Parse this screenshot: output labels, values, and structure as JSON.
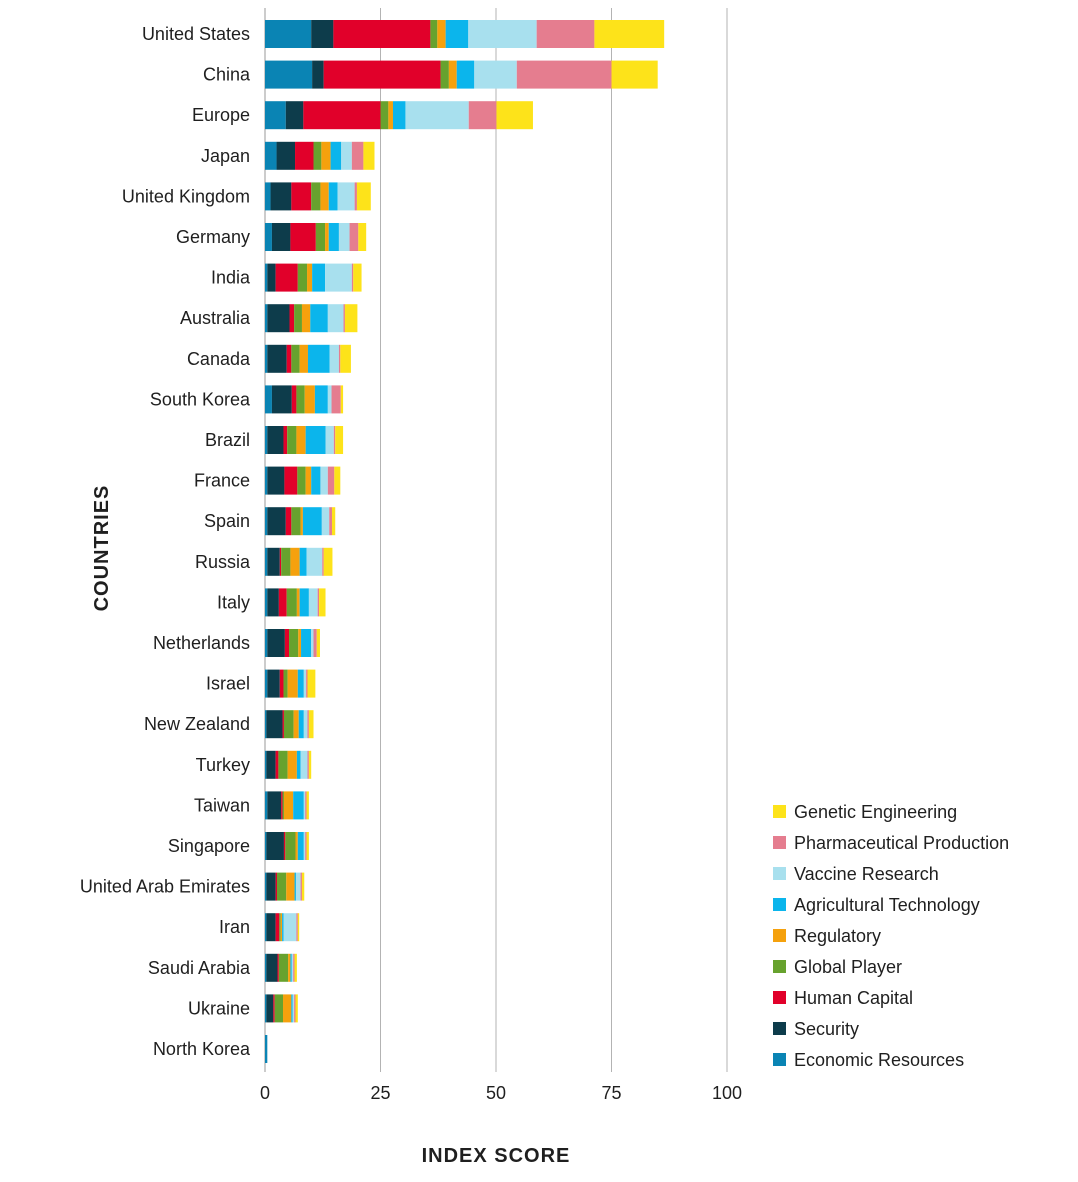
{
  "chart_data": {
    "type": "bar",
    "orientation": "horizontal",
    "stacked": true,
    "xlabel": "INDEX SCORE",
    "ylabel": "COUNTRIES",
    "xlim": [
      0,
      100
    ],
    "xticks": [
      0,
      25,
      50,
      75,
      100
    ],
    "grid": true,
    "legend_position": "bottom-right",
    "categories": [
      "United States",
      "China",
      "Europe",
      "Japan",
      "United Kingdom",
      "Germany",
      "India",
      "Australia",
      "Canada",
      "South Korea",
      "Brazil",
      "France",
      "Spain",
      "Russia",
      "Italy",
      "Netherlands",
      "Israel",
      "New Zealand",
      "Turkey",
      "Taiwan",
      "Singapore",
      "United Arab Emirates",
      "Iran",
      "Saudi Arabia",
      "Ukraine",
      "North Korea"
    ],
    "series": [
      {
        "name": "Economic Resources",
        "color": "#0a84b4",
        "values": [
          10,
          10.2,
          4.5,
          2.5,
          1.2,
          1.5,
          0.5,
          0.5,
          0.5,
          1.5,
          0.5,
          0.5,
          0.5,
          0.5,
          0.5,
          0.5,
          0.5,
          0.3,
          0.3,
          0.5,
          0.3,
          0.3,
          0.3,
          0.3,
          0.3,
          0.5
        ]
      },
      {
        "name": "Security",
        "color": "#0d3c4b",
        "values": [
          4.8,
          2.5,
          3.8,
          4.0,
          4.5,
          4.0,
          1.8,
          4.8,
          4.2,
          4.3,
          3.5,
          3.7,
          4.0,
          2.7,
          2.5,
          3.8,
          2.7,
          3.5,
          2.0,
          3.0,
          3.8,
          2.0,
          2.0,
          2.4,
          1.5,
          0
        ]
      },
      {
        "name": "Human Capital",
        "color": "#e1002a",
        "values": [
          21,
          25.3,
          16.7,
          4.0,
          4.3,
          5.5,
          4.8,
          1.0,
          1.0,
          1.0,
          0.8,
          2.8,
          1.2,
          0.3,
          1.7,
          0.9,
          0.8,
          0.3,
          0.6,
          0.3,
          0.3,
          0.3,
          0.8,
          0.3,
          0.3,
          0
        ]
      },
      {
        "name": "Global Player",
        "color": "#67a22e",
        "values": [
          1.5,
          1.8,
          1.7,
          1.7,
          2.0,
          2.0,
          2.0,
          1.7,
          1.8,
          1.8,
          2.0,
          1.8,
          2.0,
          2.0,
          2.2,
          2.0,
          0.9,
          2.1,
          2.0,
          0.3,
          2.2,
          2.0,
          0.3,
          2.0,
          1.8,
          0
        ]
      },
      {
        "name": "Regulatory",
        "color": "#f5a10d",
        "values": [
          1.8,
          1.7,
          1.0,
          2.0,
          1.8,
          0.8,
          1.1,
          1.8,
          1.8,
          2.2,
          2.0,
          1.2,
          0.5,
          2.0,
          0.6,
          0.6,
          2.2,
          1.1,
          2.0,
          2.0,
          0.5,
          1.8,
          0.3,
          0.5,
          1.8,
          0
        ]
      },
      {
        "name": "Agricultural Technology",
        "color": "#0bb5ec",
        "values": [
          4.9,
          3.8,
          2.7,
          2.3,
          1.9,
          2.2,
          2.8,
          3.8,
          4.7,
          2.8,
          4.3,
          2.0,
          4.1,
          1.5,
          2.0,
          2.2,
          1.3,
          1.1,
          0.8,
          2.3,
          1.3,
          0.3,
          0.3,
          0.3,
          0.3,
          0
        ]
      },
      {
        "name": "Vaccine Research",
        "color": "#a8e0ee",
        "values": [
          14.8,
          9.2,
          13.7,
          2.3,
          3.7,
          2.3,
          5.8,
          3.4,
          2.0,
          0.8,
          1.8,
          1.6,
          1.6,
          3.4,
          1.9,
          0.5,
          0.5,
          0.8,
          1.5,
          0.3,
          0.3,
          1.0,
          2.8,
          0.3,
          0.3,
          0
        ]
      },
      {
        "name": "Pharmaceutical Production",
        "color": "#e57d8f",
        "values": [
          12.5,
          20.5,
          6.0,
          2.5,
          0.5,
          1.9,
          0.3,
          0.3,
          0.3,
          2.0,
          0.3,
          1.4,
          0.6,
          0.3,
          0.3,
          0.7,
          0.3,
          0.3,
          0.3,
          0.3,
          0.3,
          0.3,
          0.3,
          0.3,
          0.3,
          0
        ]
      },
      {
        "name": "Genetic Engineering",
        "color": "#fde31a",
        "values": [
          15.1,
          10.0,
          7.9,
          2.4,
          3.0,
          1.7,
          1.8,
          2.7,
          2.3,
          0.5,
          1.7,
          1.3,
          0.7,
          1.9,
          1.4,
          0.7,
          1.7,
          1.0,
          0.5,
          0.5,
          0.5,
          0.5,
          0.3,
          0.5,
          0.5,
          0
        ]
      }
    ]
  }
}
